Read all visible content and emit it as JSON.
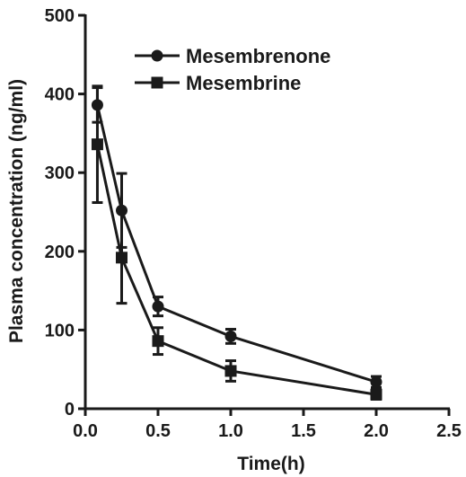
{
  "chart_data": {
    "type": "line",
    "title": "",
    "xlabel": "Time(h)",
    "ylabel": "Plasma concentration (ng/ml)",
    "xlim": [
      0,
      2.5
    ],
    "ylim": [
      0,
      500
    ],
    "x_ticks": [
      0.0,
      0.5,
      1.0,
      1.5,
      2.0,
      2.5
    ],
    "x_tick_labels": [
      "0.0",
      "0.5",
      "1.0",
      "1.5",
      "2.0",
      "2.5"
    ],
    "y_ticks": [
      0,
      100,
      200,
      300,
      400,
      500
    ],
    "y_tick_labels": [
      "0",
      "100",
      "200",
      "300",
      "400",
      "500"
    ],
    "grid": false,
    "legend_position": "top-center",
    "series": [
      {
        "name": "Mesembrenone",
        "marker": "circle",
        "color": "#1a1a1a",
        "x": [
          0.083,
          0.25,
          0.5,
          1.0,
          2.0
        ],
        "y": [
          386,
          252,
          130,
          92,
          34
        ],
        "error": [
          22,
          47,
          12,
          9,
          7
        ]
      },
      {
        "name": "Mesembrine",
        "marker": "square",
        "color": "#1a1a1a",
        "x": [
          0.083,
          0.25,
          0.5,
          1.0,
          2.0
        ],
        "y": [
          336,
          192,
          86,
          48,
          18
        ],
        "error": [
          74,
          58,
          17,
          13,
          6
        ]
      }
    ]
  }
}
